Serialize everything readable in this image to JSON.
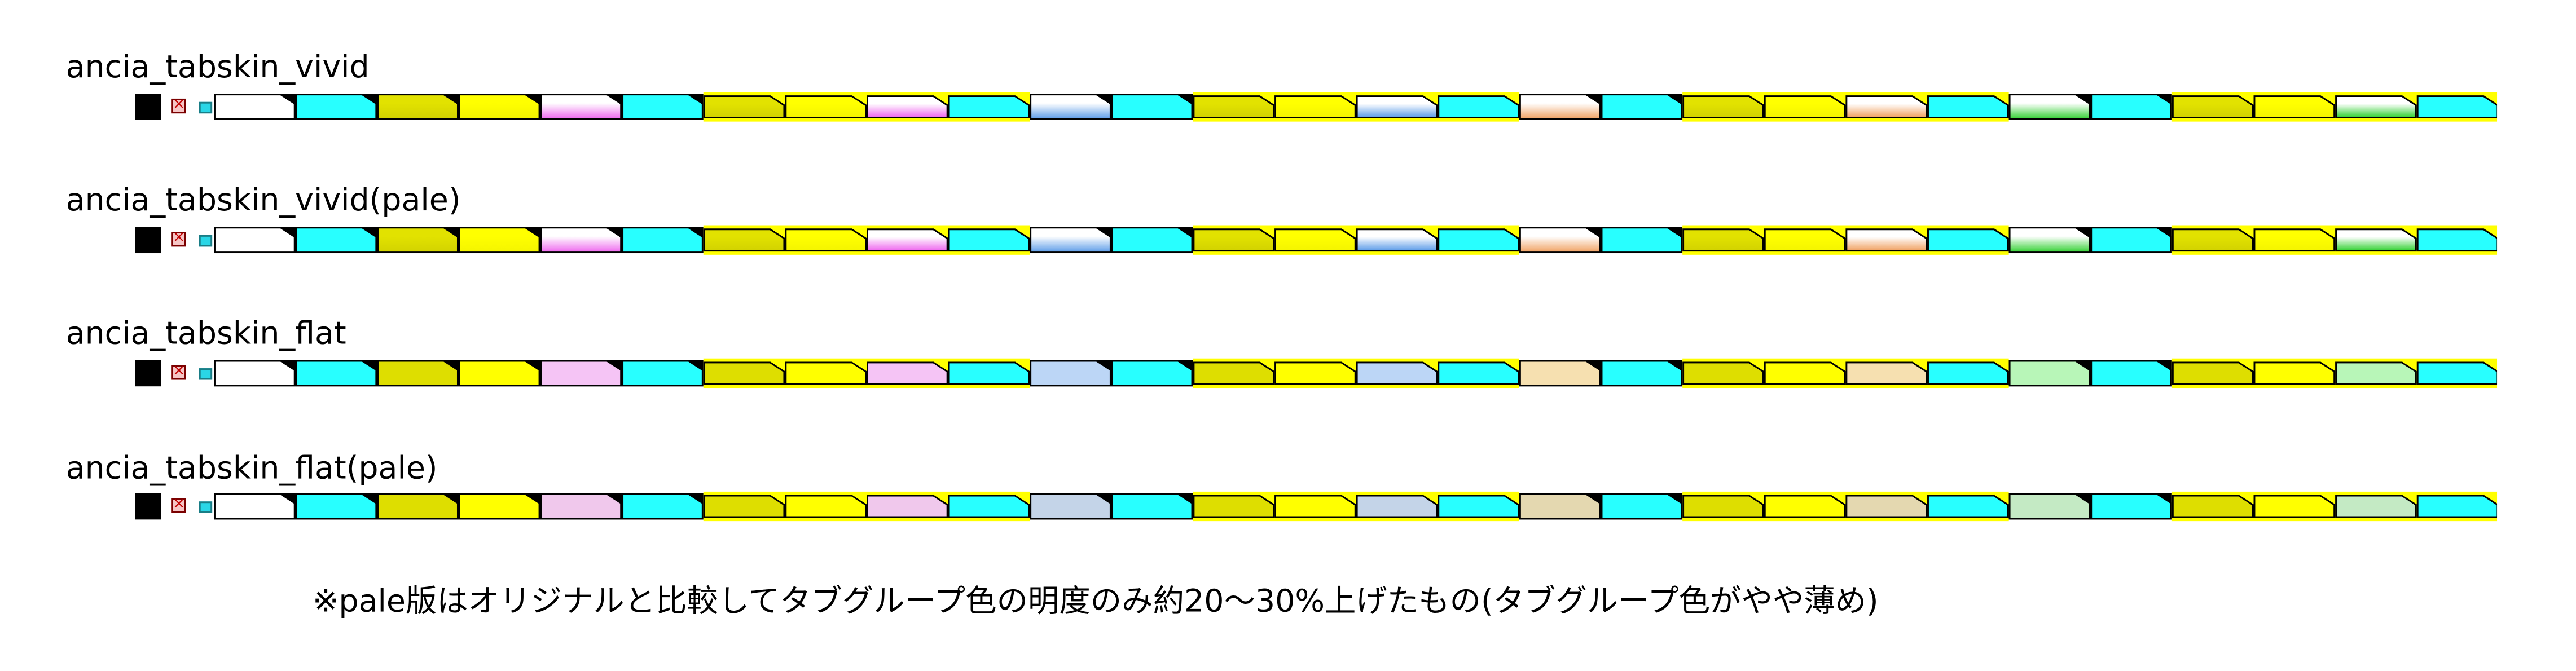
{
  "colors": {
    "cyan": "#28ffff",
    "olive_yellow": "#dede00",
    "yellow": "#ffff00",
    "black": "#000000",
    "white": "#ffffff",
    "close_red": "#c00000"
  },
  "icons": {
    "close": "close-x-icon",
    "square": "black-square-icon"
  },
  "rows": [
    {
      "title": "ancia_tabskin_vivid",
      "style": "vivid",
      "pale": false
    },
    {
      "title": "ancia_tabskin_vivid(pale)",
      "style": "vivid",
      "pale": true
    },
    {
      "title": "ancia_tabskin_flat",
      "style": "flat",
      "pale": false
    },
    {
      "title": "ancia_tabskin_flat(pale)",
      "style": "flat",
      "pale": true
    }
  ],
  "tab_groups": [
    {
      "group_color": "none",
      "tabs": [
        "white",
        "cyan",
        "olive",
        "yellow",
        "magenta",
        "cyan"
      ]
    },
    {
      "group_color": "yellow",
      "tabs": [
        "olive",
        "yellow",
        "magenta",
        "cyan"
      ]
    },
    {
      "group_color": "none",
      "tabs": [
        "blue",
        "cyan"
      ]
    },
    {
      "group_color": "yellow",
      "tabs": [
        "olive",
        "yellow",
        "blue",
        "cyan"
      ]
    },
    {
      "group_color": "none",
      "tabs": [
        "orange",
        "cyan"
      ]
    },
    {
      "group_color": "yellow",
      "tabs": [
        "olive",
        "yellow",
        "orange",
        "cyan"
      ]
    },
    {
      "group_color": "none",
      "tabs": [
        "green",
        "cyan"
      ]
    },
    {
      "group_color": "yellow",
      "tabs": [
        "olive",
        "yellow",
        "green",
        "cyan"
      ]
    }
  ],
  "footnote": "※pale版はオリジナルと比較してタブグループ色の明度のみ約20～30%上げたもの(タブグループ色がやや薄め)"
}
